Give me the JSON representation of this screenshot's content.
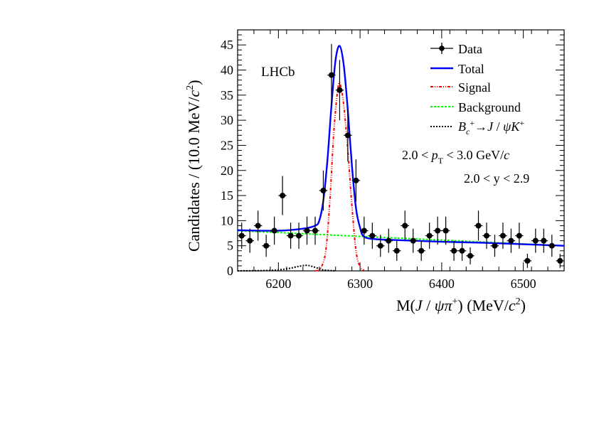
{
  "chart_data": {
    "type": "scatter",
    "experiment_label": "LHCb",
    "xlabel": {
      "prefix": "M(",
      "j": "J",
      "slash": " / ",
      "psi": "ψ",
      "pi": "π",
      "plus": "+",
      "suffix": ") (MeV/",
      "c": "c",
      "two": "2",
      "close": ")"
    },
    "ylabel": {
      "text": "Candidates / (10.0 MeV/",
      "c": "c",
      "two": "2",
      "close": ")"
    },
    "xlim": [
      6150,
      6550
    ],
    "ylim": [
      0,
      48
    ],
    "x_ticks": [
      6200,
      6300,
      6400,
      6500
    ],
    "y_ticks": [
      0,
      5,
      10,
      15,
      20,
      25,
      30,
      35,
      40,
      45
    ],
    "bin_width": 10,
    "annotations": {
      "pt_range": {
        "lo": "2.0 < ",
        "p": "p",
        "sub": "T",
        "hi": " < 3.0 GeV/",
        "c": "c"
      },
      "y_range": "2.0 < y < 2.9"
    },
    "legend": {
      "position": "top-right",
      "entries": [
        {
          "key": "data",
          "label": "Data"
        },
        {
          "key": "total",
          "label": "Total"
        },
        {
          "key": "signal",
          "label": "Signal"
        },
        {
          "key": "background",
          "label": "Background"
        },
        {
          "key": "bck",
          "b": "B",
          "c_sub": "c",
          "plus": "+",
          "arrow": "→",
          "j": "J",
          "slash": " / ",
          "psi": "ψ",
          "k": "K",
          "kplus": "+"
        }
      ]
    },
    "colors": {
      "data": "#000000",
      "total": "#0000ff",
      "signal": "#ff0000",
      "background": "#00ff00",
      "bck": "#000000"
    },
    "series": [
      {
        "name": "Data",
        "style": "points-with-errors",
        "points": [
          {
            "x": 6155,
            "y": 7,
            "err": 2.6
          },
          {
            "x": 6165,
            "y": 6,
            "err": 2.4
          },
          {
            "x": 6175,
            "y": 9,
            "err": 3.0
          },
          {
            "x": 6185,
            "y": 5,
            "err": 2.2
          },
          {
            "x": 6195,
            "y": 8,
            "err": 2.8
          },
          {
            "x": 6205,
            "y": 15,
            "err": 3.9
          },
          {
            "x": 6215,
            "y": 7,
            "err": 2.6
          },
          {
            "x": 6225,
            "y": 7,
            "err": 2.6
          },
          {
            "x": 6235,
            "y": 8,
            "err": 2.8
          },
          {
            "x": 6245,
            "y": 8,
            "err": 2.8
          },
          {
            "x": 6255,
            "y": 16,
            "err": 4.0
          },
          {
            "x": 6265,
            "y": 39,
            "err": 6.2
          },
          {
            "x": 6275,
            "y": 36,
            "err": 6.0
          },
          {
            "x": 6285,
            "y": 27,
            "err": 5.2
          },
          {
            "x": 6295,
            "y": 18,
            "err": 4.2
          },
          {
            "x": 6305,
            "y": 8,
            "err": 2.8
          },
          {
            "x": 6315,
            "y": 7,
            "err": 2.6
          },
          {
            "x": 6325,
            "y": 5,
            "err": 2.2
          },
          {
            "x": 6335,
            "y": 6,
            "err": 2.4
          },
          {
            "x": 6345,
            "y": 4,
            "err": 2.0
          },
          {
            "x": 6355,
            "y": 9,
            "err": 3.0
          },
          {
            "x": 6365,
            "y": 6,
            "err": 2.4
          },
          {
            "x": 6375,
            "y": 4,
            "err": 2.0
          },
          {
            "x": 6385,
            "y": 7,
            "err": 2.6
          },
          {
            "x": 6395,
            "y": 8,
            "err": 2.8
          },
          {
            "x": 6405,
            "y": 8,
            "err": 2.8
          },
          {
            "x": 6415,
            "y": 4,
            "err": 2.0
          },
          {
            "x": 6425,
            "y": 4,
            "err": 2.0
          },
          {
            "x": 6435,
            "y": 3,
            "err": 1.7
          },
          {
            "x": 6445,
            "y": 9,
            "err": 3.0
          },
          {
            "x": 6455,
            "y": 7,
            "err": 2.6
          },
          {
            "x": 6465,
            "y": 5,
            "err": 2.2
          },
          {
            "x": 6475,
            "y": 7,
            "err": 2.6
          },
          {
            "x": 6485,
            "y": 6,
            "err": 2.4
          },
          {
            "x": 6495,
            "y": 7,
            "err": 2.6
          },
          {
            "x": 6505,
            "y": 2,
            "err": 1.4
          },
          {
            "x": 6515,
            "y": 6,
            "err": 2.4
          },
          {
            "x": 6525,
            "y": 6,
            "err": 2.4
          },
          {
            "x": 6535,
            "y": 5,
            "err": 2.2
          },
          {
            "x": 6545,
            "y": 2,
            "err": 1.4
          }
        ]
      },
      {
        "name": "Total",
        "style": "solid",
        "points": [
          [
            6150,
            8.1
          ],
          [
            6200,
            8.0
          ],
          [
            6230,
            8.4
          ],
          [
            6245,
            9.0
          ],
          [
            6250,
            10.0
          ],
          [
            6255,
            14
          ],
          [
            6260,
            22
          ],
          [
            6265,
            33
          ],
          [
            6270,
            42
          ],
          [
            6275,
            44.8
          ],
          [
            6280,
            41
          ],
          [
            6285,
            32
          ],
          [
            6290,
            21
          ],
          [
            6295,
            12.5
          ],
          [
            6300,
            8.6
          ],
          [
            6305,
            6.8
          ],
          [
            6320,
            6.3
          ],
          [
            6350,
            6.1
          ],
          [
            6400,
            5.8
          ],
          [
            6450,
            5.6
          ],
          [
            6500,
            5.3
          ],
          [
            6550,
            5.0
          ]
        ]
      },
      {
        "name": "Signal",
        "style": "dash-dot",
        "points": [
          [
            6245,
            0
          ],
          [
            6252,
            0.6
          ],
          [
            6258,
            4
          ],
          [
            6263,
            14
          ],
          [
            6268,
            28
          ],
          [
            6273,
            36.5
          ],
          [
            6276,
            37
          ],
          [
            6280,
            33
          ],
          [
            6285,
            24
          ],
          [
            6290,
            13
          ],
          [
            6295,
            4
          ],
          [
            6300,
            0.8
          ],
          [
            6305,
            0.1
          ]
        ]
      },
      {
        "name": "Background",
        "style": "dashed",
        "points": [
          [
            6150,
            8.0
          ],
          [
            6550,
            5.0
          ]
        ]
      },
      {
        "name": "B_c+ → J/ψ K+",
        "style": "dotted",
        "points": [
          [
            6150,
            0
          ],
          [
            6190,
            0.1
          ],
          [
            6210,
            0.4
          ],
          [
            6225,
            0.9
          ],
          [
            6235,
            1.1
          ],
          [
            6245,
            0.7
          ],
          [
            6255,
            0.2
          ],
          [
            6270,
            0
          ]
        ]
      }
    ]
  }
}
